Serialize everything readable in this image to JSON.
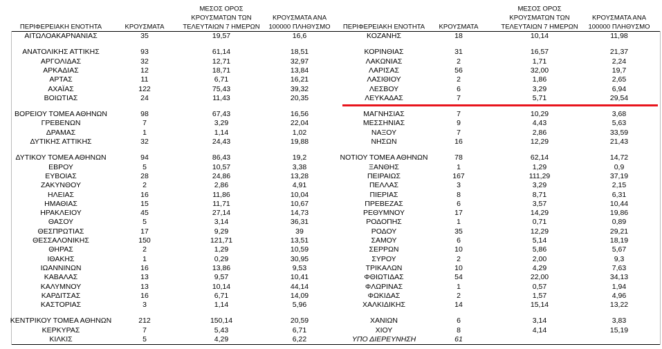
{
  "tables": [
    {
      "headers": [
        [
          "ΠΕΡΙΦΕΡΕΙΑΚΗ ΕΝΟΤΗΤΑ"
        ],
        [
          "ΚΡΟΥΣΜΑΤΑ"
        ],
        [
          "ΜΕΣΟΣ ΟΡΟΣ",
          "ΚΡΟΥΣΜΑΤΩΝ ΤΩΝ",
          "ΤΕΛΕΥΤΑΙΩΝ 7 ΗΜΕΡΩΝ"
        ],
        [
          "ΚΡΟΥΣΜΑΤΑ ΑΝΑ",
          "100000 ΠΛΗΘΥΣΜΟ"
        ]
      ],
      "groups": [
        [
          [
            "ΑΙΤΩΛΟΑΚΑΡΝΑΝΙΑΣ",
            "35",
            "19,57",
            "16,6"
          ]
        ],
        [
          [
            "ΑΝΑΤΟΛΙΚΗΣ ΑΤΤΙΚΗΣ",
            "93",
            "61,14",
            "18,51"
          ],
          [
            "ΑΡΓΟΛΙΔΑΣ",
            "32",
            "12,71",
            "32,97"
          ],
          [
            "ΑΡΚΑΔΙΑΣ",
            "12",
            "18,71",
            "13,84"
          ],
          [
            "ΑΡΤΑΣ",
            "11",
            "6,71",
            "16,21"
          ],
          [
            "ΑΧΑΪΑΣ",
            "122",
            "75,43",
            "39,32"
          ],
          [
            "ΒΟΙΩΤΙΑΣ",
            "24",
            "11,43",
            "20,35"
          ]
        ],
        [
          [
            "ΒΟΡΕΙΟΥ ΤΟΜΕΑ ΑΘΗΝΩΝ",
            "98",
            "67,43",
            "16,56"
          ],
          [
            "ΓΡΕΒΕΝΩΝ",
            "7",
            "3,29",
            "22,04"
          ],
          [
            "ΔΡΑΜΑΣ",
            "1",
            "1,14",
            "1,02"
          ],
          [
            "ΔΥΤΙΚΗΣ ΑΤΤΙΚΗΣ",
            "32",
            "24,43",
            "19,88"
          ]
        ],
        [
          [
            "ΔΥΤΙΚΟΥ ΤΟΜΕΑ ΑΘΗΝΩΝ",
            "94",
            "86,43",
            "19,2"
          ],
          [
            "ΕΒΡΟΥ",
            "5",
            "10,57",
            "3,38"
          ],
          [
            "ΕΥΒΟΙΑΣ",
            "28",
            "24,86",
            "13,28"
          ],
          [
            "ΖΑΚΥΝΘΟΥ",
            "2",
            "2,86",
            "4,91"
          ],
          [
            "ΗΛΕΙΑΣ",
            "16",
            "11,86",
            "10,04"
          ],
          [
            "ΗΜΑΘΙΑΣ",
            "15",
            "11,71",
            "10,67"
          ],
          [
            "ΗΡΑΚΛΕΙΟΥ",
            "45",
            "27,14",
            "14,73"
          ],
          [
            "ΘΑΣΟΥ",
            "5",
            "3,14",
            "36,31"
          ],
          [
            "ΘΕΣΠΡΩΤΙΑΣ",
            "17",
            "9,29",
            "39"
          ],
          [
            "ΘΕΣΣΑΛΟΝΙΚΗΣ",
            "150",
            "121,71",
            "13,51"
          ],
          [
            "ΘΗΡΑΣ",
            "2",
            "1,29",
            "10,59"
          ],
          [
            "ΙΘΑΚΗΣ",
            "1",
            "0,29",
            "30,95"
          ],
          [
            "ΙΩΑΝΝΙΝΩΝ",
            "16",
            "13,86",
            "9,53"
          ],
          [
            "ΚΑΒΑΛΑΣ",
            "13",
            "9,57",
            "10,41"
          ],
          [
            "ΚΑΛΥΜΝΟΥ",
            "13",
            "10,14",
            "44,14"
          ],
          [
            "ΚΑΡΔΙΤΣΑΣ",
            "16",
            "6,71",
            "14,09"
          ],
          [
            "ΚΑΣΤΟΡΙΑΣ",
            "3",
            "1,14",
            "5,96"
          ]
        ],
        [
          [
            "ΚΕΝΤΡΙΚΟΥ ΤΟΜΕΑ ΑΘΗΝΩΝ",
            "212",
            "150,14",
            "20,59"
          ],
          [
            "ΚΕΡΚΥΡΑΣ",
            "7",
            "5,43",
            "6,71"
          ],
          [
            "ΚΙΛΚΙΣ",
            "5",
            "4,29",
            "6,22"
          ]
        ]
      ]
    },
    {
      "headers": [
        [
          "ΠΕΡΙΦΕΡΕΙΑΚΗ ΕΝΟΤΗΤΑ"
        ],
        [
          "ΚΡΟΥΣΜΑΤΑ"
        ],
        [
          "ΜΕΣΟΣ ΟΡΟΣ",
          "ΚΡΟΥΣΜΑΤΩΝ ΤΩΝ",
          "ΤΕΛΕΥΤΑΙΩΝ 7 ΗΜΕΡΩΝ"
        ],
        [
          "ΚΡΟΥΣΜΑΤΑ ΑΝΑ",
          "100000 ΠΛΗΘΥΣΜΟ"
        ]
      ],
      "groups": [
        [
          [
            "ΚΟΖΑΝΗΣ",
            "18",
            "10,14",
            "11,98"
          ]
        ],
        [
          [
            "ΚΟΡΙΝΘΙΑΣ",
            "31",
            "16,57",
            "21,37"
          ],
          [
            "ΛΑΚΩΝΙΑΣ",
            "2",
            "1,71",
            "2,24"
          ],
          [
            "ΛΑΡΙΣΑΣ",
            "56",
            "32,00",
            "19,7"
          ],
          [
            "ΛΑΣΙΘΙΟΥ",
            "2",
            "1,86",
            "2,65"
          ],
          [
            "ΛΕΣΒΟΥ",
            "6",
            "3,29",
            "6,94"
          ],
          [
            "ΛΕΥΚΑΔΑΣ",
            "7",
            "5,71",
            "29,54"
          ]
        ],
        [
          [
            "ΜΑΓΝΗΣΙΑΣ",
            "7",
            "10,29",
            "3,68"
          ],
          [
            "ΜΕΣΣΗΝΙΑΣ",
            "9",
            "4,43",
            "5,63"
          ],
          [
            "ΝΑΞΟΥ",
            "7",
            "2,86",
            "33,59"
          ],
          [
            "ΝΗΣΩΝ",
            "16",
            "12,29",
            "21,43"
          ]
        ],
        [
          [
            "ΝΟΤΙΟΥ ΤΟΜΕΑ ΑΘΗΝΩΝ",
            "78",
            "62,14",
            "14,72"
          ],
          [
            "ΞΑΝΘΗΣ",
            "1",
            "1,29",
            "0,9"
          ],
          [
            "ΠΕΙΡΑΙΩΣ",
            "167",
            "111,29",
            "37,19"
          ],
          [
            "ΠΕΛΛΑΣ",
            "3",
            "3,29",
            "2,15"
          ],
          [
            "ΠΙΕΡΙΑΣ",
            "8",
            "8,71",
            "6,31"
          ],
          [
            "ΠΡΕΒΕΖΑΣ",
            "6",
            "3,57",
            "10,44"
          ],
          [
            "ΡΕΘΥΜΝΟΥ",
            "17",
            "14,29",
            "19,86"
          ],
          [
            "ΡΟΔΟΠΗΣ",
            "1",
            "0,71",
            "0,89"
          ],
          [
            "ΡΟΔΟΥ",
            "35",
            "12,29",
            "29,21"
          ],
          [
            "ΣΑΜΟΥ",
            "6",
            "5,14",
            "18,19"
          ],
          [
            "ΣΕΡΡΩΝ",
            "10",
            "5,86",
            "5,67"
          ],
          [
            "ΣΥΡΟΥ",
            "2",
            "2,00",
            "9,3"
          ],
          [
            "ΤΡΙΚΑΛΩΝ",
            "10",
            "4,29",
            "7,63"
          ],
          [
            "ΦΘΙΩΤΙΔΑΣ",
            "54",
            "22,00",
            "34,13"
          ],
          [
            "ΦΛΩΡΙΝΑΣ",
            "1",
            "0,57",
            "1,94"
          ],
          [
            "ΦΩΚΙΔΑΣ",
            "2",
            "1,57",
            "4,96"
          ],
          [
            "ΧΑΛΚΙΔΙΚΗΣ",
            "14",
            "15,14",
            "13,22"
          ]
        ],
        [
          [
            "ΧΑΝΙΩΝ",
            "6",
            "3,14",
            "3,83"
          ],
          [
            "ΧΙΟΥ",
            "8",
            "4,14",
            "15,19"
          ],
          [
            "ΥΠΟ ΔΙΕΡΕΥΝΗΣΗ",
            "61"
          ]
        ]
      ]
    }
  ]
}
